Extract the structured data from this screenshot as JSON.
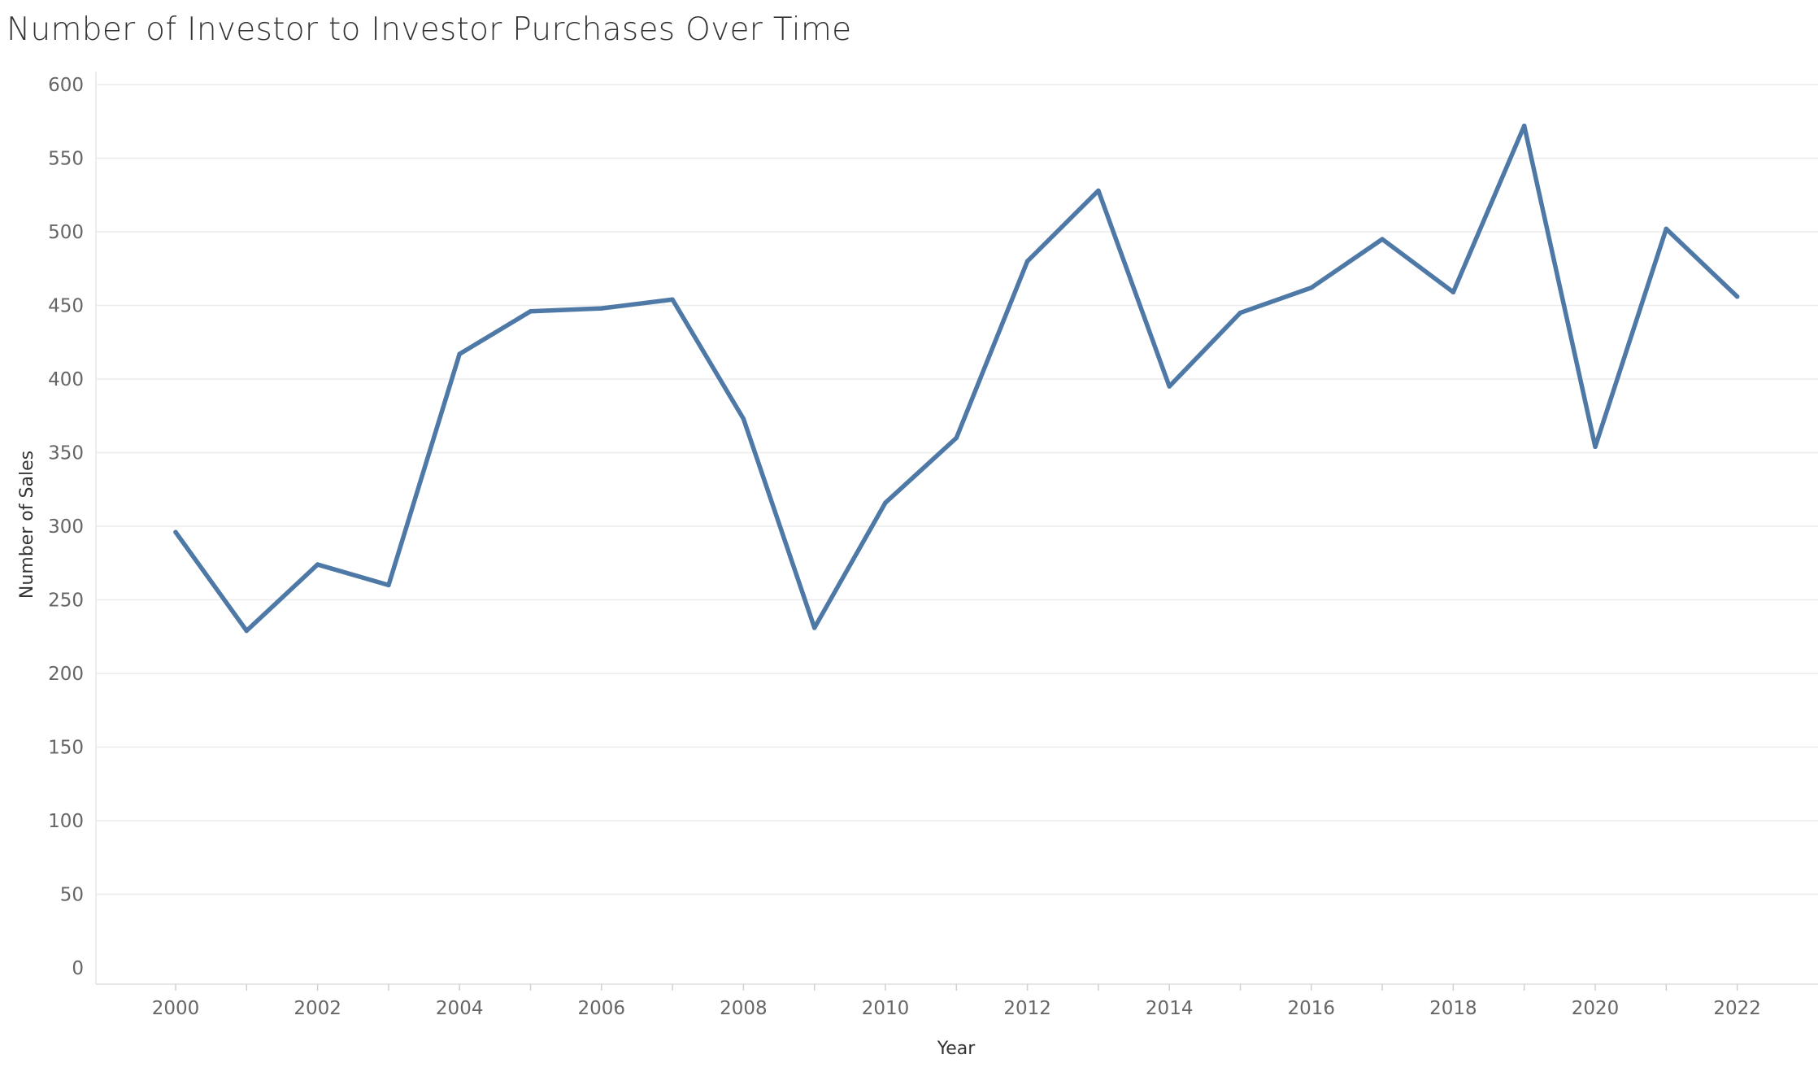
{
  "chart_data": {
    "type": "line",
    "title": "Number of Investor to Investor Purchases Over Time",
    "xlabel": "Year",
    "ylabel": "Number of Sales",
    "x": [
      2000,
      2001,
      2002,
      2003,
      2004,
      2005,
      2006,
      2007,
      2008,
      2009,
      2010,
      2011,
      2012,
      2013,
      2014,
      2015,
      2016,
      2017,
      2018,
      2019,
      2020,
      2021,
      2022
    ],
    "x_ticks": [
      "2000",
      "2002",
      "2004",
      "2006",
      "2008",
      "2010",
      "2012",
      "2014",
      "2016",
      "2018",
      "2020",
      "2022"
    ],
    "series": [
      {
        "values": [
          296,
          229,
          274,
          260,
          417,
          446,
          448,
          454,
          373,
          231,
          316,
          360,
          480,
          528,
          395,
          445,
          462,
          495,
          459,
          572,
          354,
          502,
          456
        ]
      }
    ],
    "y_ticks": [
      "0",
      "50",
      "100",
      "150",
      "200",
      "250",
      "300",
      "350",
      "400",
      "450",
      "500",
      "550",
      "600"
    ],
    "ylim": [
      0,
      600
    ],
    "grid": true,
    "line_color": "#4e79a7"
  }
}
